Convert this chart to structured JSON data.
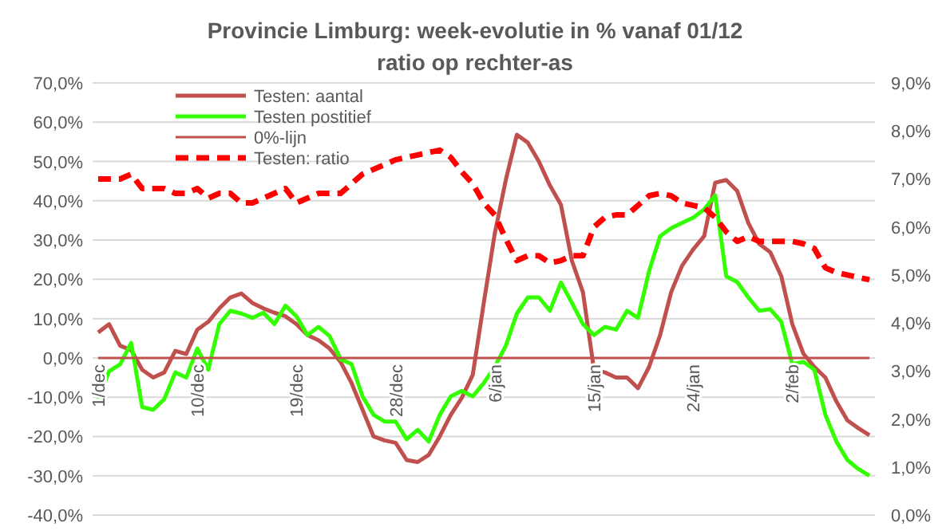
{
  "chart_data": {
    "type": "line",
    "title": "Provincie Limburg: week-evolutie in %  vanaf 01/12",
    "subtitle": "ratio op rechter-as",
    "categories": [
      "1/dec",
      null,
      null,
      null,
      null,
      null,
      null,
      null,
      null,
      "10/dec",
      null,
      null,
      null,
      null,
      null,
      null,
      null,
      null,
      "19/dec",
      null,
      null,
      null,
      null,
      null,
      null,
      null,
      null,
      "28/dec",
      null,
      null,
      null,
      null,
      null,
      null,
      null,
      null,
      "6/jan",
      null,
      null,
      null,
      null,
      null,
      null,
      null,
      null,
      "15/jan",
      null,
      null,
      null,
      null,
      null,
      null,
      null,
      null,
      "24/jan",
      null,
      null,
      null,
      null,
      null,
      null,
      null,
      null,
      "2/feb",
      null,
      null,
      null,
      null,
      null,
      null,
      null
    ],
    "series": [
      {
        "name": "Testen: aantal",
        "color": "#c0504d",
        "line_style": "solid",
        "values": [
          6.5,
          8.6,
          3.1,
          2,
          -3,
          -5,
          -3.7,
          1.8,
          1,
          7.2,
          9.2,
          12.6,
          15.4,
          16.4,
          14,
          12.6,
          11.5,
          10.6,
          8.6,
          5.8,
          4.5,
          2.4,
          -1,
          -6.4,
          -13.2,
          -20,
          -21,
          -21.6,
          -26,
          -26.5,
          -24.7,
          -20,
          -14.5,
          -10.2,
          -4.3,
          14,
          31.7,
          45.3,
          56.8,
          54.8,
          50,
          43.9,
          39,
          24.7,
          16.7,
          -3,
          -3.7,
          -5,
          -5,
          -7.7,
          -2.3,
          5.8,
          16.7,
          23.5,
          27.6,
          31,
          44.6,
          45.3,
          42.5,
          34.4,
          29,
          26.9,
          20.8,
          8.6,
          1.1,
          -2.3,
          -5,
          -11.1,
          -15.9,
          -17.9,
          -19.7
        ]
      },
      {
        "name": "Testen postitief",
        "color": "#33ff00",
        "line_style": "solid",
        "values": [
          -10.5,
          -3.4,
          -1.6,
          3.8,
          -12.5,
          -13.2,
          -10.5,
          -3.7,
          -5,
          2.4,
          -3,
          8.6,
          12,
          11.3,
          10.2,
          11.5,
          8.6,
          13.3,
          10.6,
          5.8,
          7.9,
          5.6,
          -0.3,
          -1.6,
          -9.8,
          -14.5,
          -16.2,
          -16.2,
          -20.7,
          -18.3,
          -21.3,
          -14.5,
          -9.8,
          -8.4,
          -9.8,
          -6.4,
          -2.3,
          3.1,
          11.3,
          15.4,
          15.4,
          12,
          19.2,
          14,
          8.6,
          5.8,
          7.9,
          7.2,
          12,
          10.2,
          22.1,
          31,
          33,
          34.4,
          35.7,
          37.8,
          41.4,
          20.8,
          19.3,
          15.4,
          12,
          12.4,
          9.2,
          -1.6,
          -1,
          -3,
          -14.5,
          -21.3,
          -26,
          -28.3,
          -30
        ]
      },
      {
        "name": "0%-lijn",
        "color": "#c0504d",
        "line_style": "solid",
        "values": [
          0,
          0,
          0,
          0,
          0,
          0,
          0,
          0,
          0,
          0,
          0,
          0,
          0,
          0,
          0,
          0,
          0,
          0,
          0,
          0,
          0,
          0,
          0,
          0,
          0,
          0,
          0,
          0,
          0,
          0,
          0,
          0,
          0,
          0,
          0,
          0,
          0,
          0,
          0,
          0,
          0,
          0,
          0,
          0,
          0,
          0,
          0,
          0,
          0,
          0,
          0,
          0,
          0,
          0,
          0,
          0,
          0,
          0,
          0,
          0,
          0,
          0,
          0,
          0,
          0,
          0,
          0,
          0,
          0,
          0,
          0
        ]
      },
      {
        "name": "Testen: ratio",
        "color": "#ff0000",
        "line_style": "dashed",
        "axis": "y2",
        "values": [
          7,
          7,
          7,
          7.1,
          6.8,
          6.8,
          6.8,
          6.7,
          6.7,
          6.8,
          6.6,
          6.7,
          6.7,
          6.5,
          6.5,
          6.6,
          6.7,
          6.8,
          6.5,
          6.6,
          6.7,
          6.7,
          6.7,
          6.9,
          7.1,
          7.2,
          7.3,
          7.4,
          7.45,
          7.5,
          7.55,
          7.6,
          7.45,
          7.15,
          6.9,
          6.5,
          6.25,
          5.75,
          5.3,
          5.4,
          5.4,
          5.25,
          5.3,
          5.4,
          5.4,
          6,
          6.2,
          6.25,
          6.25,
          6.45,
          6.65,
          6.7,
          6.65,
          6.5,
          6.45,
          6.4,
          6.2,
          5.9,
          5.7,
          5.8,
          5.7,
          5.7,
          5.7,
          5.7,
          5.65,
          5.55,
          5.15,
          5.05,
          5,
          4.95,
          4.9
        ]
      }
    ],
    "ylim": [
      -40,
      70
    ],
    "yticks": [
      {
        "value": -40,
        "label": "-40,0%"
      },
      {
        "value": -30,
        "label": "-30,0%"
      },
      {
        "value": -20,
        "label": "-20,0%"
      },
      {
        "value": -10,
        "label": "-10,0%"
      },
      {
        "value": 0,
        "label": "0,0%"
      },
      {
        "value": 10,
        "label": "10,0%"
      },
      {
        "value": 20,
        "label": "20,0%"
      },
      {
        "value": 30,
        "label": "30,0%"
      },
      {
        "value": 40,
        "label": "40,0%"
      },
      {
        "value": 50,
        "label": "50,0%"
      },
      {
        "value": 60,
        "label": "60,0%"
      },
      {
        "value": 70,
        "label": "70,0%"
      }
    ],
    "y2lim": [
      0,
      9
    ],
    "y2ticks": [
      {
        "value": 0,
        "label": "0,0%"
      },
      {
        "value": 1,
        "label": "1,0%"
      },
      {
        "value": 2,
        "label": "2,0%"
      },
      {
        "value": 3,
        "label": "3,0%"
      },
      {
        "value": 4,
        "label": "4,0%"
      },
      {
        "value": 5,
        "label": "5,0%"
      },
      {
        "value": 6,
        "label": "6,0%"
      },
      {
        "value": 7,
        "label": "7,0%"
      },
      {
        "value": 8,
        "label": "8,0%"
      },
      {
        "value": 9,
        "label": "9,0%"
      }
    ],
    "grid": "y",
    "legend": "top left",
    "marker": "none"
  }
}
